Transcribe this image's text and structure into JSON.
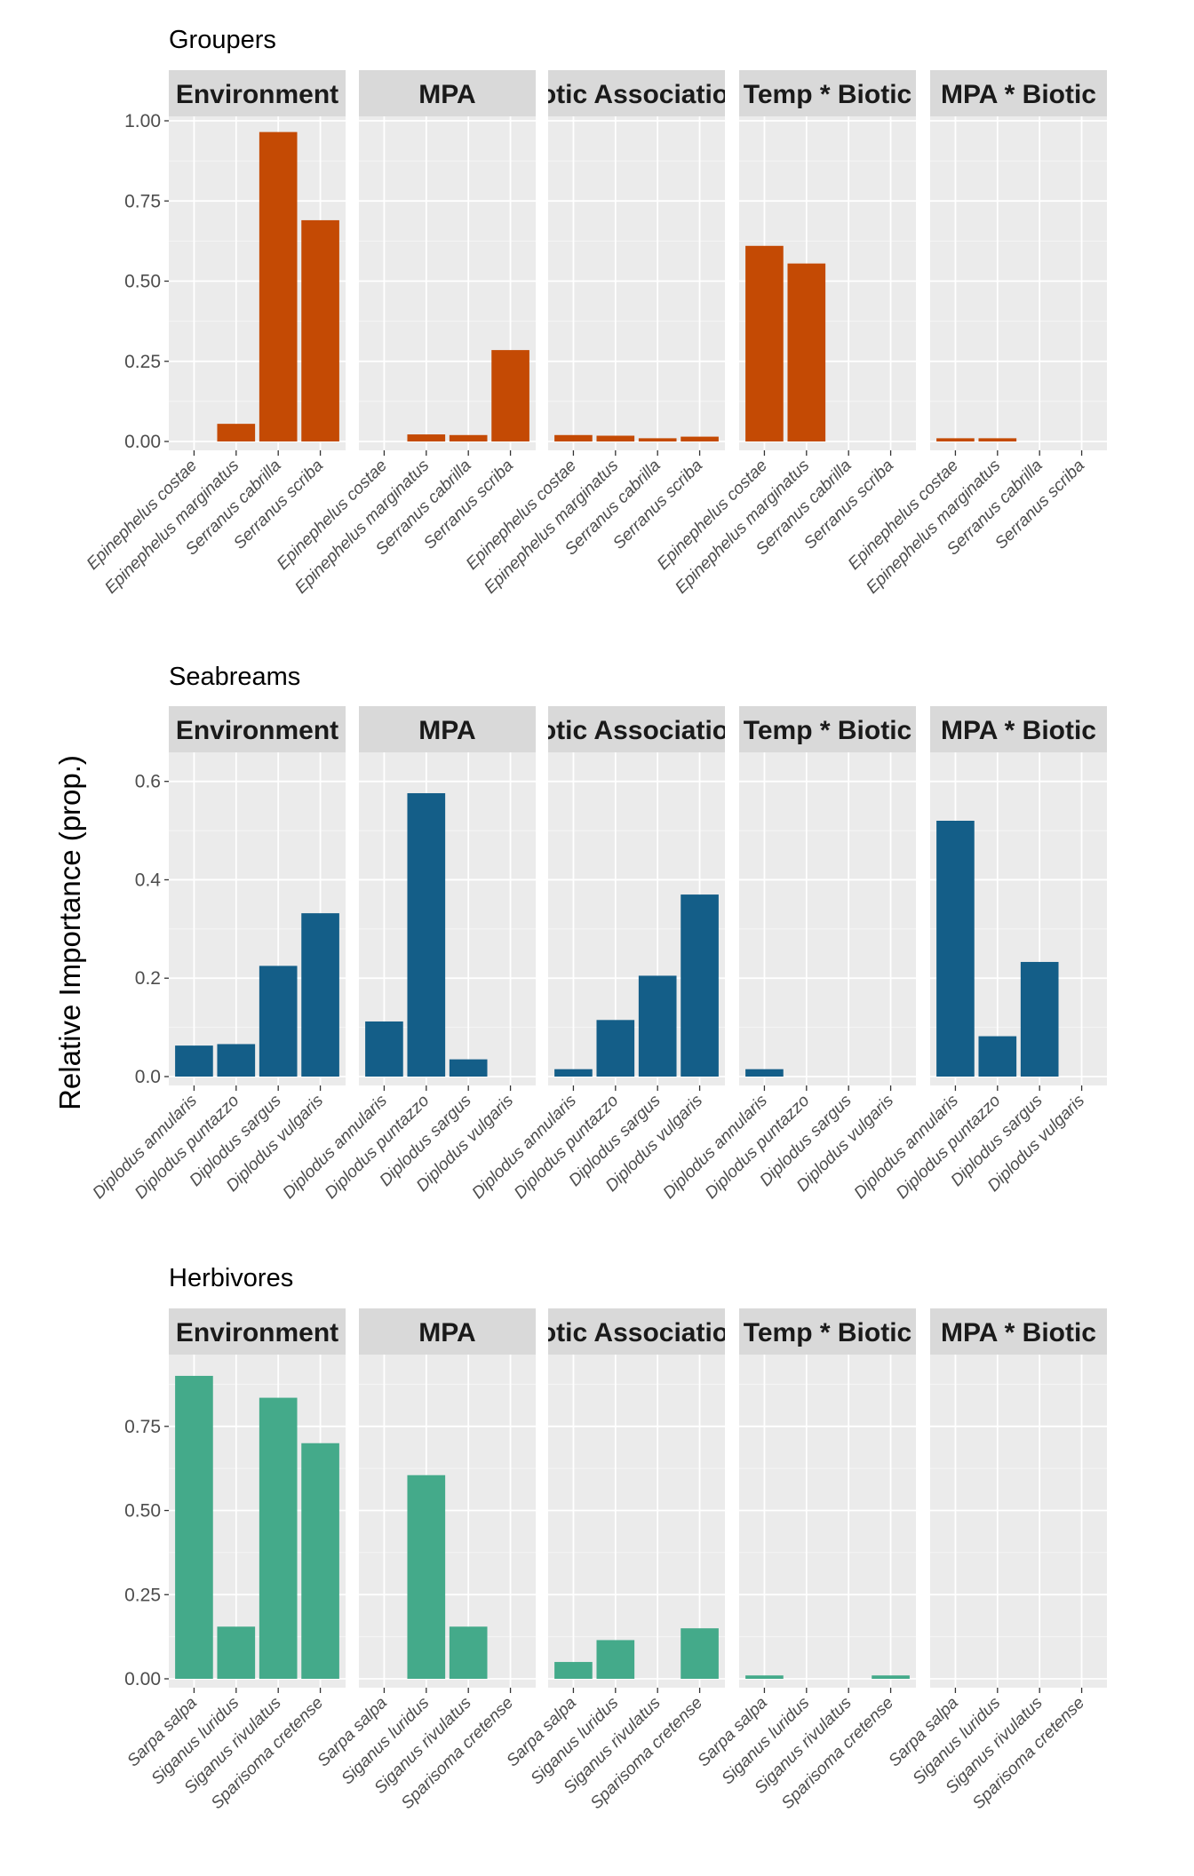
{
  "ylabel": "Relative Importance (prop.)",
  "facets": [
    "Environment",
    "MPA",
    "Biotic Associations",
    "Temp * Biotic",
    "MPA * Biotic"
  ],
  "chart_data": [
    {
      "type": "bar",
      "title": "Groupers",
      "color": "#C44A04",
      "ylim": [
        0,
        1.0
      ],
      "yticks": [
        0.0,
        0.25,
        0.5,
        0.75,
        1.0
      ],
      "ytick_labels": [
        "0.00",
        "0.25",
        "0.50",
        "0.75",
        "1.00"
      ],
      "categories": [
        "Epinephelus costae",
        "Epinephelus marginatus",
        "Serranus cabrilla",
        "Serranus scriba"
      ],
      "panels": [
        {
          "facet": "Environment",
          "values": [
            0.0,
            0.055,
            0.965,
            0.69
          ]
        },
        {
          "facet": "MPA",
          "values": [
            0.0,
            0.022,
            0.02,
            0.285
          ]
        },
        {
          "facet": "Biotic Associations",
          "values": [
            0.02,
            0.018,
            0.01,
            0.015
          ]
        },
        {
          "facet": "Temp * Biotic",
          "values": [
            0.61,
            0.555,
            0.0,
            0.0
          ]
        },
        {
          "facet": "MPA * Biotic",
          "values": [
            0.01,
            0.01,
            0.0,
            0.0
          ]
        }
      ]
    },
    {
      "type": "bar",
      "title": "Seabreams",
      "color": "#145E88",
      "ylim": [
        0,
        0.65
      ],
      "yticks": [
        0.0,
        0.2,
        0.4,
        0.6
      ],
      "ytick_labels": [
        "0.0",
        "0.2",
        "0.4",
        "0.6"
      ],
      "categories": [
        "Diplodus annularis",
        "Diplodus puntazzo",
        "Diplodus sargus",
        "Diplodus vulgaris"
      ],
      "panels": [
        {
          "facet": "Environment",
          "values": [
            0.063,
            0.066,
            0.225,
            0.332
          ]
        },
        {
          "facet": "MPA",
          "values": [
            0.112,
            0.576,
            0.035,
            0.0
          ]
        },
        {
          "facet": "Biotic Associations",
          "values": [
            0.015,
            0.115,
            0.205,
            0.37
          ]
        },
        {
          "facet": "Temp * Biotic",
          "values": [
            0.015,
            0.0,
            0.0,
            0.0
          ]
        },
        {
          "facet": "MPA * Biotic",
          "values": [
            0.52,
            0.082,
            0.233,
            0.0
          ]
        }
      ]
    },
    {
      "type": "bar",
      "title": "Herbivores",
      "color": "#44AA8A",
      "ylim": [
        0,
        0.95
      ],
      "yticks": [
        0.0,
        0.25,
        0.5,
        0.75
      ],
      "ytick_labels": [
        "0.00",
        "0.25",
        "0.50",
        "0.75"
      ],
      "categories": [
        "Sarpa salpa",
        "Siganus luridus",
        "Siganus rivulatus",
        "Sparisoma cretense"
      ],
      "panels": [
        {
          "facet": "Environment",
          "values": [
            0.9,
            0.155,
            0.835,
            0.7
          ]
        },
        {
          "facet": "MPA",
          "values": [
            0.0,
            0.605,
            0.155,
            0.0
          ]
        },
        {
          "facet": "Biotic Associations",
          "values": [
            0.05,
            0.115,
            0.0,
            0.15
          ]
        },
        {
          "facet": "Temp * Biotic",
          "values": [
            0.01,
            0.0,
            0.0,
            0.01
          ]
        },
        {
          "facet": "MPA * Biotic",
          "values": [
            0.0,
            0.0,
            0.0,
            0.0
          ]
        }
      ]
    }
  ]
}
